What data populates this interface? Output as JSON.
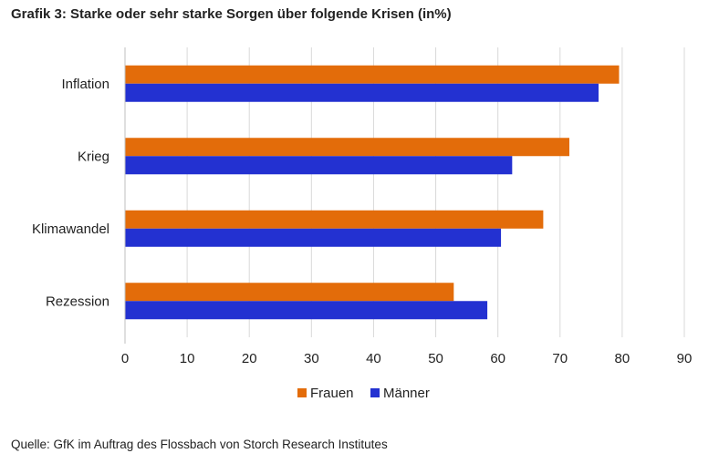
{
  "title": "Grafik 3: Starke oder sehr starke Sorgen über folgende Krisen (in%)",
  "source": "Quelle: GfK im Auftrag des Flossbach von Storch Research Institutes",
  "chart_data": {
    "type": "bar",
    "orientation": "horizontal",
    "title": "Grafik 3: Starke oder sehr starke Sorgen über folgende Krisen (in%)",
    "categories": [
      "Inflation",
      "Krieg",
      "Klimawandel",
      "Rezession"
    ],
    "series": [
      {
        "name": "Frauen",
        "color": "#e36c0a",
        "values": [
          79.5,
          71.5,
          67.3,
          52.9
        ]
      },
      {
        "name": "Männer",
        "color": "#2331d1",
        "values": [
          76.2,
          62.3,
          60.5,
          58.3
        ]
      }
    ],
    "xlim": [
      0,
      90
    ],
    "xticks": [
      0,
      10,
      20,
      30,
      40,
      50,
      60,
      70,
      80,
      90
    ],
    "grid": true,
    "legend": "bottom-center",
    "xlabel": "",
    "ylabel": ""
  }
}
